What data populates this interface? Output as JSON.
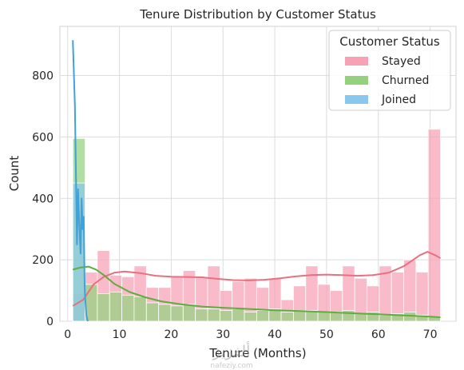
{
  "chart_data": {
    "type": "histogram",
    "title": "Tenure Distribution by Customer Status",
    "xlabel": "Tenure (Months)",
    "ylabel": "Count",
    "xlim": [
      -1.5,
      75
    ],
    "ylim": [
      0,
      960
    ],
    "xticks": [
      0,
      10,
      20,
      30,
      40,
      50,
      60,
      70
    ],
    "yticks": [
      0,
      200,
      400,
      600,
      800
    ],
    "grid": true,
    "legend": {
      "title": "Customer Status",
      "position": "top-right"
    },
    "bin_edges": [
      1.0,
      3.37,
      5.73,
      8.1,
      10.47,
      12.83,
      15.2,
      17.57,
      19.93,
      22.3,
      24.67,
      27.03,
      29.4,
      31.77,
      34.13,
      36.5,
      38.87,
      41.23,
      43.6,
      45.97,
      48.33,
      50.7,
      53.07,
      55.43,
      57.8,
      60.17,
      62.53,
      64.9,
      67.27,
      69.63,
      72.0
    ],
    "series": [
      {
        "name": "Stayed",
        "color": "#f7a1b5",
        "line_color": "#e8707f",
        "counts": [
          90,
          160,
          230,
          150,
          145,
          180,
          110,
          110,
          145,
          165,
          145,
          180,
          100,
          130,
          140,
          110,
          140,
          70,
          115,
          180,
          120,
          100,
          180,
          140,
          115,
          180,
          160,
          200,
          160,
          625
        ],
        "kde": [
          [
            1,
            50
          ],
          [
            3,
            70
          ],
          [
            5,
            120
          ],
          [
            7,
            145
          ],
          [
            9,
            158
          ],
          [
            11,
            162
          ],
          [
            14,
            157
          ],
          [
            17,
            148
          ],
          [
            20,
            145
          ],
          [
            23,
            144
          ],
          [
            26,
            143
          ],
          [
            29,
            138
          ],
          [
            32,
            134
          ],
          [
            35,
            133
          ],
          [
            38,
            135
          ],
          [
            41,
            140
          ],
          [
            44,
            146
          ],
          [
            47,
            150
          ],
          [
            50,
            152
          ],
          [
            53,
            150
          ],
          [
            56,
            148
          ],
          [
            59,
            150
          ],
          [
            62,
            158
          ],
          [
            65,
            180
          ],
          [
            68,
            215
          ],
          [
            69.5,
            226
          ],
          [
            71,
            215
          ],
          [
            72,
            205
          ]
        ]
      },
      {
        "name": "Churned",
        "color": "#93d17e",
        "line_color": "#5fad3e",
        "counts": [
          595,
          120,
          90,
          95,
          85,
          80,
          60,
          55,
          50,
          55,
          40,
          40,
          35,
          40,
          30,
          35,
          40,
          30,
          35,
          35,
          30,
          30,
          35,
          25,
          30,
          20,
          25,
          30,
          20,
          15
        ],
        "kde": [
          [
            1,
            168
          ],
          [
            2.5,
            175
          ],
          [
            4,
            178
          ],
          [
            5.5,
            168
          ],
          [
            7,
            150
          ],
          [
            9,
            122
          ],
          [
            12,
            95
          ],
          [
            15,
            78
          ],
          [
            18,
            65
          ],
          [
            22,
            55
          ],
          [
            26,
            48
          ],
          [
            30,
            44
          ],
          [
            35,
            40
          ],
          [
            40,
            36
          ],
          [
            45,
            33
          ],
          [
            50,
            30
          ],
          [
            55,
            26
          ],
          [
            60,
            23
          ],
          [
            65,
            19
          ],
          [
            70,
            15
          ],
          [
            72,
            13
          ]
        ]
      },
      {
        "name": "Joined",
        "color": "#8ac7ec",
        "line_color": "#3fa2dc",
        "counts": [
          450
        ],
        "kde": [
          [
            1,
            915
          ],
          [
            1.4,
            700
          ],
          [
            1.8,
            250
          ],
          [
            2.0,
            430
          ],
          [
            2.2,
            330
          ],
          [
            2.5,
            220
          ],
          [
            2.7,
            400
          ],
          [
            2.9,
            300
          ],
          [
            3.1,
            340
          ],
          [
            3.3,
            100
          ],
          [
            3.6,
            20
          ],
          [
            3.9,
            0
          ]
        ]
      }
    ]
  },
  "watermark": {
    "text": "ألفزيز",
    "subtext": "nafeziy.com"
  }
}
